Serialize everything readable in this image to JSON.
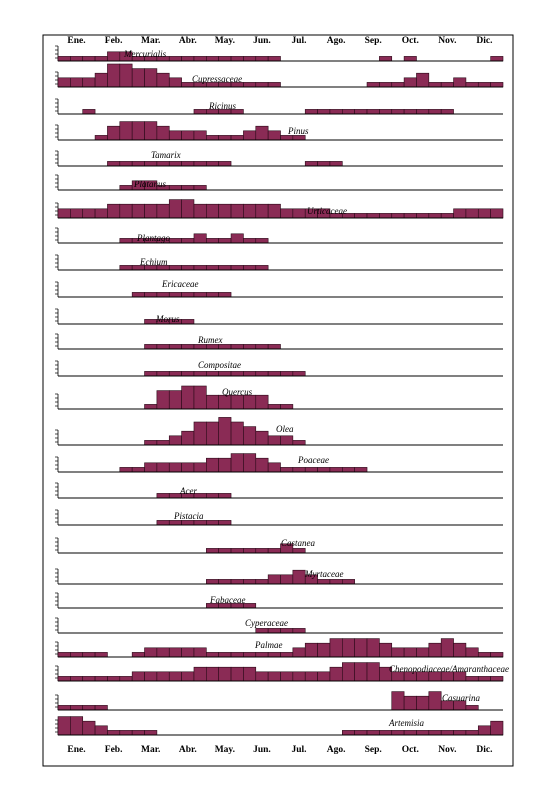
{
  "chart_data": {
    "type": "bar",
    "layout": "small-multiples",
    "months": [
      "Ene.",
      "Feb.",
      "Mar.",
      "Abr.",
      "May.",
      "Jun.",
      "Jul.",
      "Ago.",
      "Sep.",
      "Oct.",
      "Nov.",
      "Dic."
    ],
    "bins_per_month": 3,
    "title": "",
    "xlabel": "",
    "ylabel": "",
    "series": [
      {
        "name": "Mercurialis",
        "values": [
          1,
          1,
          1,
          1,
          2,
          2,
          1,
          1,
          1,
          1,
          1,
          1,
          1,
          1,
          1,
          1,
          1,
          1,
          0,
          0,
          0,
          0,
          0,
          0,
          0,
          0,
          1,
          0,
          1,
          0,
          0,
          0,
          0,
          0,
          0,
          1
        ]
      },
      {
        "name": "Cupressaceae",
        "values": [
          2,
          2,
          2,
          3,
          5,
          5,
          4,
          4,
          3,
          2,
          1,
          1,
          1,
          1,
          1,
          1,
          1,
          1,
          0,
          0,
          0,
          0,
          0,
          0,
          0,
          1,
          1,
          1,
          2,
          3,
          1,
          1,
          2,
          1,
          1,
          1
        ]
      },
      {
        "name": "Ricinus",
        "values": [
          0,
          0,
          1,
          0,
          0,
          0,
          0,
          0,
          0,
          0,
          0,
          1,
          1,
          1,
          1,
          0,
          0,
          0,
          0,
          0,
          1,
          1,
          1,
          1,
          1,
          1,
          1,
          1,
          1,
          1,
          1,
          1,
          0,
          0,
          0,
          0
        ]
      },
      {
        "name": "Pinus",
        "values": [
          0,
          0,
          0,
          1,
          3,
          4,
          4,
          4,
          3,
          2,
          2,
          2,
          1,
          1,
          1,
          2,
          3,
          2,
          1,
          1,
          0,
          0,
          0,
          0,
          0,
          0,
          0,
          0,
          0,
          0,
          0,
          0,
          0,
          0,
          0,
          0
        ]
      },
      {
        "name": "Tamarix",
        "values": [
          0,
          0,
          0,
          0,
          1,
          1,
          1,
          1,
          1,
          1,
          1,
          1,
          1,
          1,
          0,
          0,
          0,
          0,
          0,
          0,
          1,
          1,
          1,
          0,
          0,
          0,
          0,
          0,
          0,
          0,
          0,
          0,
          0,
          0,
          0,
          0
        ]
      },
      {
        "name": "Platanus",
        "values": [
          0,
          0,
          0,
          0,
          0,
          1,
          2,
          2,
          1,
          1,
          1,
          1,
          0,
          0,
          0,
          0,
          0,
          0,
          0,
          0,
          0,
          0,
          0,
          0,
          0,
          0,
          0,
          0,
          0,
          0,
          0,
          0,
          0,
          0,
          0,
          0
        ]
      },
      {
        "name": "Urticaceae",
        "values": [
          2,
          2,
          2,
          2,
          3,
          3,
          3,
          3,
          3,
          4,
          4,
          3,
          3,
          3,
          3,
          3,
          3,
          3,
          2,
          2,
          2,
          2,
          1,
          1,
          1,
          1,
          1,
          1,
          1,
          1,
          1,
          1,
          2,
          2,
          2,
          2
        ]
      },
      {
        "name": "Plantago",
        "values": [
          0,
          0,
          0,
          0,
          0,
          1,
          1,
          1,
          1,
          1,
          1,
          2,
          1,
          1,
          2,
          1,
          1,
          0,
          0,
          0,
          0,
          0,
          0,
          0,
          0,
          0,
          0,
          0,
          0,
          0,
          0,
          0,
          0,
          0,
          0,
          0
        ]
      },
      {
        "name": "Echium",
        "values": [
          0,
          0,
          0,
          0,
          0,
          1,
          1,
          1,
          1,
          1,
          1,
          1,
          1,
          1,
          1,
          1,
          1,
          0,
          0,
          0,
          0,
          0,
          0,
          0,
          0,
          0,
          0,
          0,
          0,
          0,
          0,
          0,
          0,
          0,
          0,
          0
        ]
      },
      {
        "name": "Ericaceae",
        "values": [
          0,
          0,
          0,
          0,
          0,
          0,
          1,
          1,
          1,
          1,
          1,
          1,
          1,
          1,
          0,
          0,
          0,
          0,
          0,
          0,
          0,
          0,
          0,
          0,
          0,
          0,
          0,
          0,
          0,
          0,
          0,
          0,
          0,
          0,
          0,
          0
        ]
      },
      {
        "name": "Morus",
        "values": [
          0,
          0,
          0,
          0,
          0,
          0,
          0,
          1,
          1,
          1,
          1,
          0,
          0,
          0,
          0,
          0,
          0,
          0,
          0,
          0,
          0,
          0,
          0,
          0,
          0,
          0,
          0,
          0,
          0,
          0,
          0,
          0,
          0,
          0,
          0,
          0
        ]
      },
      {
        "name": "Rumex",
        "values": [
          0,
          0,
          0,
          0,
          0,
          0,
          0,
          1,
          1,
          1,
          1,
          1,
          1,
          1,
          1,
          1,
          1,
          1,
          0,
          0,
          0,
          0,
          0,
          0,
          0,
          0,
          0,
          0,
          0,
          0,
          0,
          0,
          0,
          0,
          0,
          0
        ]
      },
      {
        "name": "Compositae",
        "values": [
          0,
          0,
          0,
          0,
          0,
          0,
          0,
          1,
          1,
          1,
          1,
          1,
          1,
          1,
          1,
          1,
          1,
          1,
          1,
          1,
          0,
          0,
          0,
          0,
          0,
          0,
          0,
          0,
          0,
          0,
          0,
          0,
          0,
          0,
          0,
          0
        ]
      },
      {
        "name": "Quercus",
        "values": [
          0,
          0,
          0,
          0,
          0,
          0,
          0,
          1,
          4,
          4,
          5,
          5,
          3,
          3,
          3,
          3,
          3,
          1,
          1,
          0,
          0,
          0,
          0,
          0,
          0,
          0,
          0,
          0,
          0,
          0,
          0,
          0,
          0,
          0,
          0,
          0
        ]
      },
      {
        "name": "Olea",
        "values": [
          0,
          0,
          0,
          0,
          0,
          0,
          0,
          1,
          1,
          2,
          3,
          5,
          5,
          6,
          5,
          4,
          3,
          2,
          2,
          1,
          0,
          0,
          0,
          0,
          0,
          0,
          0,
          0,
          0,
          0,
          0,
          0,
          0,
          0,
          0,
          0
        ]
      },
      {
        "name": "Poaceae",
        "values": [
          0,
          0,
          0,
          0,
          0,
          1,
          1,
          2,
          2,
          2,
          2,
          2,
          3,
          3,
          4,
          4,
          3,
          2,
          1,
          1,
          1,
          1,
          1,
          1,
          1,
          0,
          0,
          0,
          0,
          0,
          0,
          0,
          0,
          0,
          0,
          0
        ]
      },
      {
        "name": "Acer",
        "values": [
          0,
          0,
          0,
          0,
          0,
          0,
          0,
          0,
          1,
          1,
          1,
          1,
          1,
          1,
          0,
          0,
          0,
          0,
          0,
          0,
          0,
          0,
          0,
          0,
          0,
          0,
          0,
          0,
          0,
          0,
          0,
          0,
          0,
          0,
          0,
          0
        ]
      },
      {
        "name": "Pistacia",
        "values": [
          0,
          0,
          0,
          0,
          0,
          0,
          0,
          0,
          1,
          1,
          1,
          1,
          1,
          1,
          0,
          0,
          0,
          0,
          0,
          0,
          0,
          0,
          0,
          0,
          0,
          0,
          0,
          0,
          0,
          0,
          0,
          0,
          0,
          0,
          0,
          0
        ]
      },
      {
        "name": "Castanea",
        "values": [
          0,
          0,
          0,
          0,
          0,
          0,
          0,
          0,
          0,
          0,
          0,
          0,
          1,
          1,
          1,
          1,
          1,
          1,
          2,
          1,
          0,
          0,
          0,
          0,
          0,
          0,
          0,
          0,
          0,
          0,
          0,
          0,
          0,
          0,
          0,
          0
        ]
      },
      {
        "name": "Myrtaceae",
        "values": [
          0,
          0,
          0,
          0,
          0,
          0,
          0,
          0,
          0,
          0,
          0,
          0,
          1,
          1,
          1,
          1,
          1,
          2,
          2,
          3,
          2,
          1,
          1,
          1,
          0,
          0,
          0,
          0,
          0,
          0,
          0,
          0,
          0,
          0,
          0,
          0
        ]
      },
      {
        "name": "Fabaceae",
        "values": [
          0,
          0,
          0,
          0,
          0,
          0,
          0,
          0,
          0,
          0,
          0,
          0,
          1,
          1,
          1,
          1,
          0,
          0,
          0,
          0,
          0,
          0,
          0,
          0,
          0,
          0,
          0,
          0,
          0,
          0,
          0,
          0,
          0,
          0,
          0,
          0
        ]
      },
      {
        "name": "Cyperaceae",
        "values": [
          0,
          0,
          0,
          0,
          0,
          0,
          0,
          0,
          0,
          0,
          0,
          0,
          0,
          0,
          0,
          0,
          1,
          1,
          1,
          1,
          0,
          0,
          0,
          0,
          0,
          0,
          0,
          0,
          0,
          0,
          0,
          0,
          0,
          0,
          0,
          0
        ]
      },
      {
        "name": "Palmae",
        "values": [
          1,
          1,
          1,
          1,
          0,
          0,
          1,
          2,
          2,
          2,
          2,
          2,
          1,
          1,
          1,
          1,
          1,
          1,
          1,
          2,
          3,
          3,
          4,
          4,
          4,
          4,
          3,
          2,
          2,
          2,
          3,
          4,
          3,
          2,
          1,
          1
        ]
      },
      {
        "name": "Chenopodiaceae/Amaranthaceae",
        "values": [
          1,
          1,
          1,
          1,
          1,
          1,
          2,
          2,
          2,
          2,
          2,
          3,
          3,
          3,
          3,
          3,
          2,
          2,
          2,
          2,
          2,
          2,
          3,
          4,
          4,
          4,
          3,
          2,
          2,
          2,
          2,
          2,
          2,
          1,
          1,
          1
        ]
      },
      {
        "name": "Casuarina",
        "values": [
          1,
          1,
          1,
          1,
          0,
          0,
          0,
          0,
          0,
          0,
          0,
          0,
          0,
          0,
          0,
          0,
          0,
          0,
          0,
          0,
          0,
          0,
          0,
          0,
          0,
          0,
          0,
          4,
          3,
          3,
          4,
          2,
          2,
          1,
          0,
          0
        ]
      },
      {
        "name": "Artemisia",
        "values": [
          4,
          4,
          3,
          2,
          1,
          1,
          1,
          1,
          0,
          0,
          0,
          0,
          0,
          0,
          0,
          0,
          0,
          0,
          0,
          0,
          0,
          0,
          0,
          1,
          1,
          1,
          1,
          1,
          1,
          1,
          1,
          1,
          1,
          1,
          2,
          3
        ]
      }
    ]
  }
}
